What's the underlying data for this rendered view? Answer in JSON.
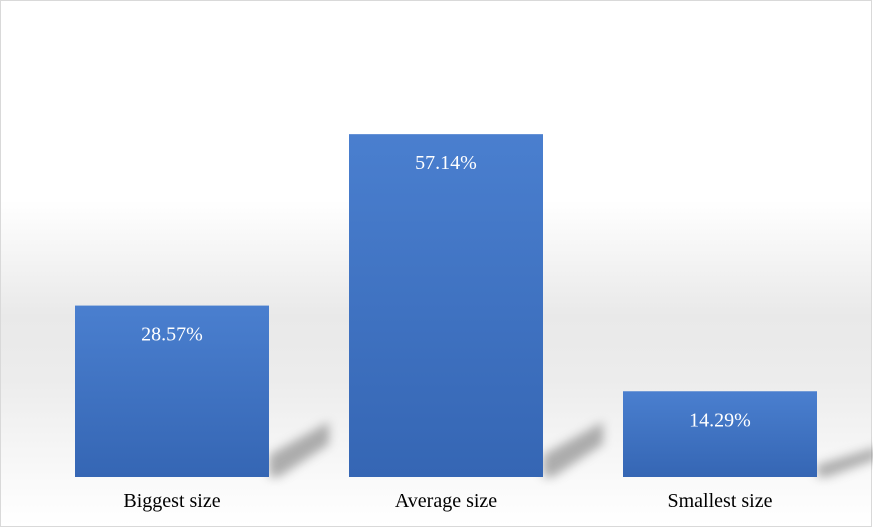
{
  "chart_data": {
    "type": "bar",
    "categories": [
      "Biggest size",
      "Average size",
      "Smallest size"
    ],
    "values": [
      28.57,
      57.14,
      14.29
    ],
    "data_labels": [
      "28.57%",
      "57.14%",
      "14.29%"
    ],
    "ylim": [
      0,
      60
    ],
    "grid": false,
    "legend": "none",
    "colors": {
      "bar_top": "#4a7fcf",
      "bar_bottom": "#3566b4",
      "label_text": "#ffffff",
      "axis_text": "#000000",
      "shadow": "#6f6f6f"
    }
  }
}
